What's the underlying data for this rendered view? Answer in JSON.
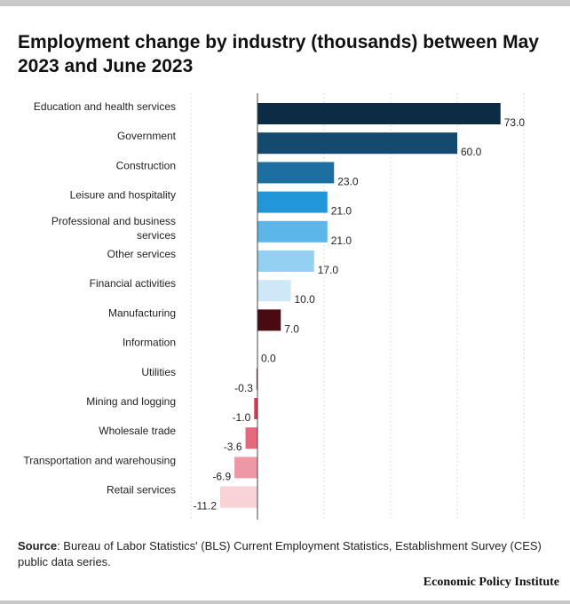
{
  "title": "Employment change by industry (thousands) between May 2023 and June 2023",
  "source": {
    "label": "Source",
    "text": ": Bureau of Labor Statistics' (BLS) Current Employment Statistics, Establishment Survey (CES) public data series."
  },
  "brand": "Economic Policy Institute",
  "chart_data": {
    "type": "bar",
    "orientation": "horizontal",
    "title": "Employment change by industry (thousands) between May 2023 and June 2023",
    "xlim": [
      -20,
      80
    ],
    "grid": true,
    "categories": [
      "Education and health services",
      "Government",
      "Construction",
      "Leisure and hospitality",
      "Professional and business services",
      "Other services",
      "Financial activities",
      "Manufacturing",
      "Information",
      "Utilities",
      "Mining and logging",
      "Wholesale trade",
      "Transportation and warehousing",
      "Retail services"
    ],
    "values": [
      73.0,
      60.0,
      23.0,
      21.0,
      21.0,
      17.0,
      10.0,
      7.0,
      0.0,
      -0.3,
      -1.0,
      -3.6,
      -6.9,
      -11.2
    ],
    "value_labels": [
      "73.0",
      "60.0",
      "23.0",
      "21.0",
      "21.0",
      "17.0",
      "10.0",
      "7.0",
      "0.0",
      "-0.3",
      "-1.0",
      "-3.6",
      "-6.9",
      "-11.2"
    ],
    "colors": [
      "#0c2b45",
      "#144a6e",
      "#1c6fa0",
      "#2196d9",
      "#5db6e8",
      "#94d0f1",
      "#cfe8f7",
      "#4a0a12",
      "#cccccc",
      "#a8233a",
      "#d23e55",
      "#e5687d",
      "#ee98a5",
      "#f8d2d7"
    ]
  }
}
